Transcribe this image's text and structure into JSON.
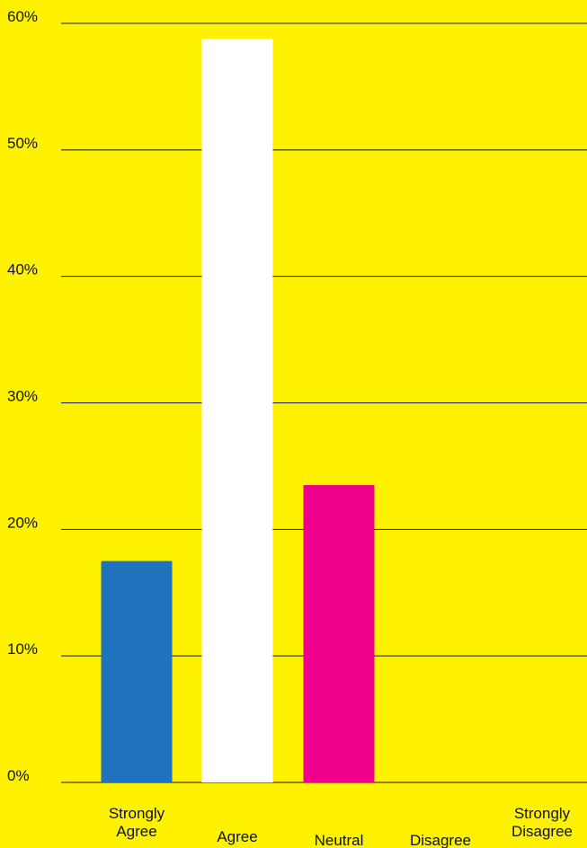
{
  "colors": {
    "background": "#FFF200",
    "gridline": "#1a1a1a",
    "strongly_agree": "#1F73BD",
    "agree": "#FFFFFF",
    "neutral": "#EC008C"
  },
  "chart_data": {
    "type": "bar",
    "title": "",
    "xlabel": "",
    "ylabel": "",
    "ylim": [
      0,
      60
    ],
    "yticks": [
      {
        "value": 0,
        "label": "0%"
      },
      {
        "value": 10,
        "label": "10%"
      },
      {
        "value": 20,
        "label": "20%"
      },
      {
        "value": 30,
        "label": "30%"
      },
      {
        "value": 40,
        "label": "40%"
      },
      {
        "value": 50,
        "label": "50%"
      },
      {
        "value": 60,
        "label": "60%"
      }
    ],
    "grid": true,
    "categories": [
      {
        "lines": [
          "Strongly",
          "Agree"
        ]
      },
      {
        "lines": [
          "Agree"
        ]
      },
      {
        "lines": [
          "Neutral"
        ]
      },
      {
        "lines": [
          "Disagree"
        ]
      },
      {
        "lines": [
          "Strongly",
          "Disagree"
        ]
      }
    ],
    "values": [
      17.5,
      58.8,
      23.5,
      0,
      0
    ],
    "bar_colors": [
      "#1F73BD",
      "#FFFFFF",
      "#EC008C",
      "#1F73BD",
      "#1F73BD"
    ]
  }
}
